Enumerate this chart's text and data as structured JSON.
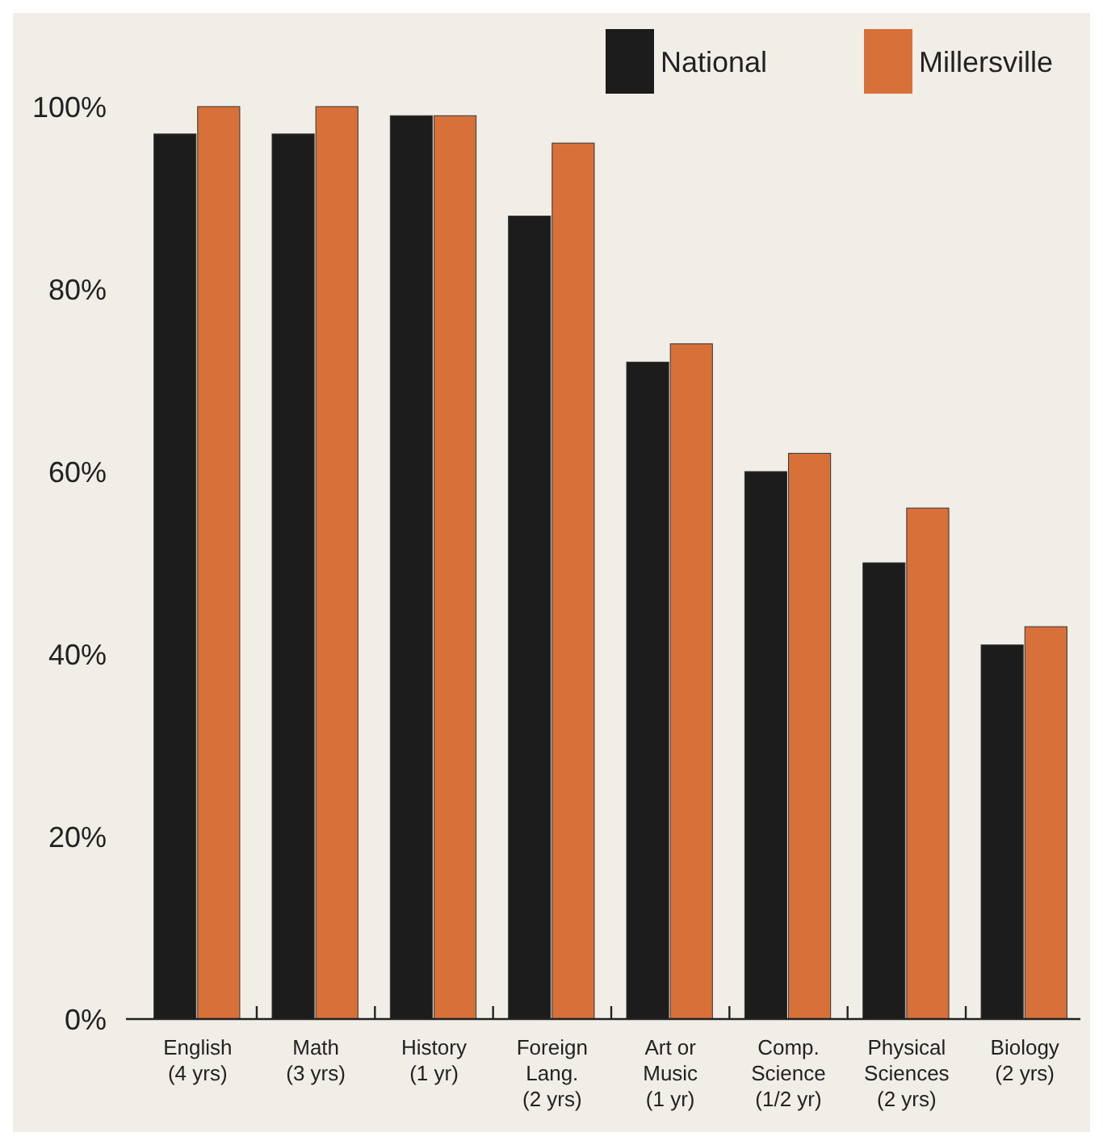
{
  "chart_data": {
    "type": "bar",
    "categories": [
      "English\n(4 yrs)",
      "Math\n(3 yrs)",
      "History\n(1 yr)",
      "Foreign\nLang.\n(2 yrs)",
      "Art or\nMusic\n(1 yr)",
      "Comp.\nScience\n(1/2 yr)",
      "Physical\nSciences\n(2 yrs)",
      "Biology\n(2 yrs)"
    ],
    "series": [
      {
        "name": "National",
        "color": "#1c1c1c",
        "values": [
          97,
          97,
          99,
          88,
          72,
          60,
          50,
          41
        ]
      },
      {
        "name": "Millersville",
        "color": "#d8703a",
        "values": [
          100,
          100,
          99,
          96,
          74,
          62,
          56,
          43
        ]
      }
    ],
    "ylim": [
      0,
      100
    ],
    "yticks": [
      {
        "value": 0,
        "label": "0%"
      },
      {
        "value": 20,
        "label": "20%"
      },
      {
        "value": 40,
        "label": "40%"
      },
      {
        "value": 60,
        "label": "60%"
      },
      {
        "value": 80,
        "label": "80%"
      },
      {
        "value": 100,
        "label": "100%"
      }
    ],
    "grid": false,
    "legend": "top right"
  }
}
